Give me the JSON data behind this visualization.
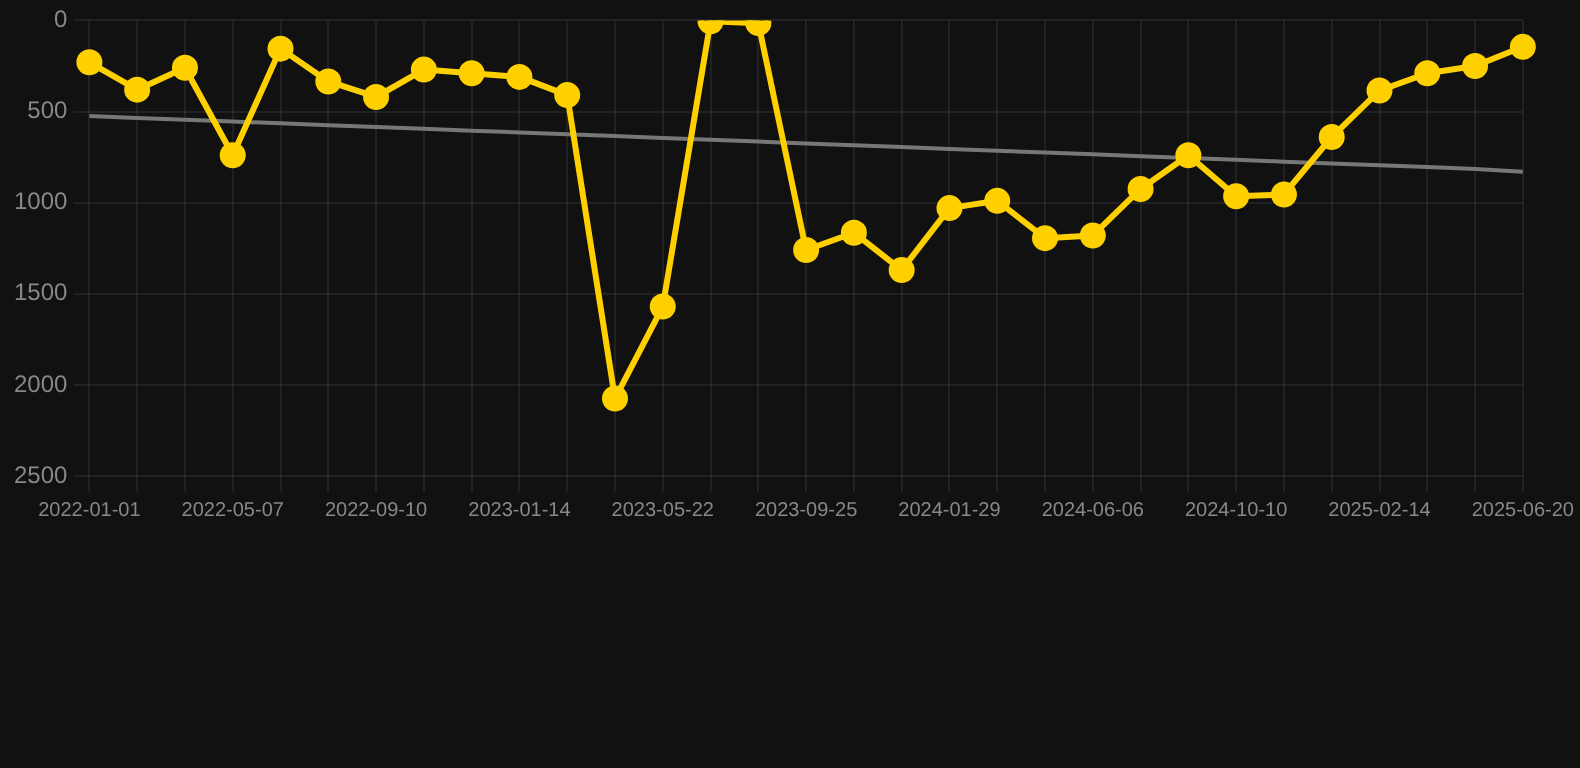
{
  "chart_data": {
    "type": "line",
    "categories": [
      "2022-01-01",
      null,
      null,
      "2022-05-07",
      null,
      null,
      "2022-09-10",
      null,
      null,
      "2023-01-14",
      null,
      null,
      "2023-05-22",
      null,
      null,
      "2023-09-25",
      null,
      null,
      "2024-01-29",
      null,
      null,
      "2024-06-06",
      null,
      null,
      "2024-10-10",
      null,
      null,
      "2025-02-14",
      null,
      null,
      "2025-06-20"
    ],
    "series": [
      {
        "color": "#ffd000",
        "values": [
          230,
          380,
          260,
          740,
          155,
          335,
          420,
          270,
          290,
          310,
          410,
          2075,
          1570,
          5,
          15,
          1260,
          1165,
          1370,
          1030,
          990,
          1195,
          1180,
          925,
          740,
          965,
          955,
          640,
          385,
          290,
          250,
          145
        ]
      },
      {
        "type": "line",
        "color": "#777777",
        "marker": "none",
        "values": [
          525,
          535,
          545,
          555,
          565,
          575,
          585,
          595,
          605,
          615,
          625,
          635,
          645,
          655,
          665,
          675,
          685,
          695,
          705,
          715,
          725,
          735,
          745,
          755,
          765,
          775,
          785,
          795,
          805,
          815,
          830
        ]
      }
    ],
    "ylim": [
      2500,
      0
    ],
    "yticks": [
      0,
      500,
      1000,
      1500,
      2000,
      2500
    ],
    "grid": true,
    "legend": false,
    "marker": "circle",
    "line_style": "solid"
  }
}
